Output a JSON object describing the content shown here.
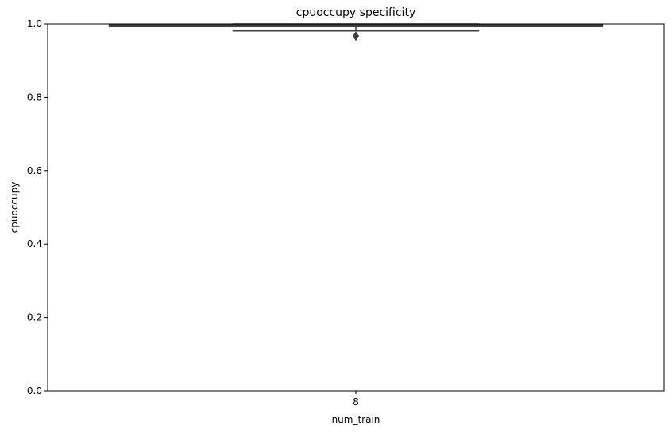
{
  "chart_data": {
    "type": "box",
    "title": "cpuoccupy specificity",
    "xlabel": "num_train",
    "ylabel": "cpuoccupy",
    "categories": [
      "8"
    ],
    "ylim": [
      0,
      1.0
    ],
    "yticks": [
      0.0,
      0.2,
      0.4,
      0.6,
      0.8,
      1.0
    ],
    "ytick_labels": [
      "0.0",
      "0.2",
      "0.4",
      "0.6",
      "0.8",
      "1.0"
    ],
    "boxes": [
      {
        "category": "8",
        "whisker_low": 0.981,
        "q1": 0.993,
        "median": 0.996,
        "q3": 0.999,
        "whisker_high": 1.0,
        "outliers": [
          0.967
        ]
      }
    ],
    "grid": false,
    "colors": {
      "box": "#3d3d3d",
      "axis": "#000000"
    }
  }
}
